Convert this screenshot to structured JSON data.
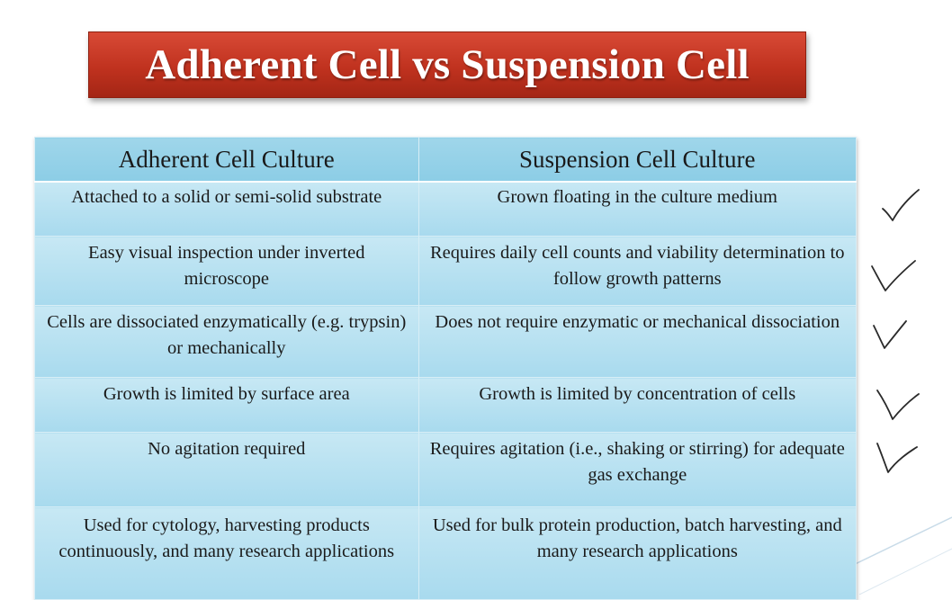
{
  "slide": {
    "title": "Adherent Cell vs Suspension Cell"
  },
  "table": {
    "headers": [
      "Adherent Cell Culture",
      "Suspension Cell Culture"
    ],
    "rows": [
      [
        "Attached to a solid or semi-solid substrate",
        "Grown floating in the culture medium"
      ],
      [
        "Easy visual inspection under inverted microscope",
        "Requires daily cell counts and viability determination to follow growth patterns"
      ],
      [
        "Cells are dissociated enzymatically (e.g. trypsin) or mechanically",
        "Does not require enzymatic or mechanical dissociation"
      ],
      [
        "Growth is limited by surface area",
        "Growth is limited by concentration of cells"
      ],
      [
        "No agitation required",
        "Requires agitation (i.e., shaking or stirring) for adequate gas exchange"
      ],
      [
        "Used for cytology, harvesting products continuously, and many research applications",
        "Used for bulk protein production, batch harvesting, and many research applications"
      ]
    ]
  },
  "annotations": {
    "checkmarks": 5,
    "icon": "handwritten-checkmark-icon"
  },
  "colors": {
    "title_banner": "#c0321f",
    "title_text": "#ffffff",
    "header_fill": "#8ccde6",
    "cell_fill": "#b5e0f0",
    "grid_line": "#d8eef6"
  }
}
